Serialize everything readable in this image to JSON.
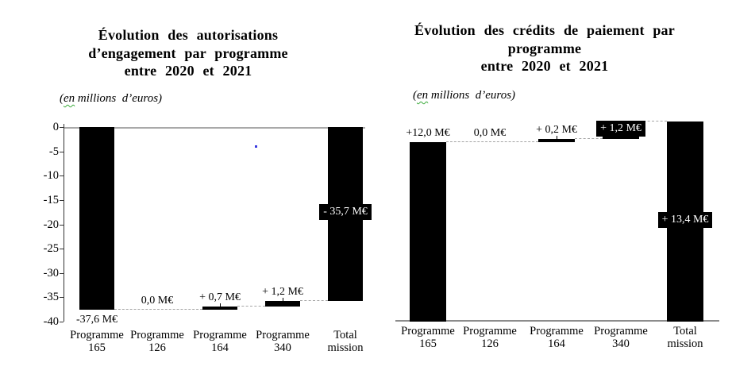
{
  "page": {
    "background": "#ffffff"
  },
  "artifacts": {
    "stray_dot_color": "#3a3ae0"
  },
  "chart_data": [
    {
      "type": "bar",
      "subtype": "waterfall",
      "title": "Évolution des autorisations d’engagement par programme entre 2020 et 2021",
      "title_lines": [
        "Évolution des autorisations",
        "d’engagement par programme",
        "entre 2020 et 2021"
      ],
      "subtitle": "(en millions  d’euros)",
      "subtitle_parts": {
        "open": "(",
        "wavy": "en",
        "rest": " millions  d’euros)"
      },
      "categories": [
        "Programme 165",
        "Programme 126",
        "Programme 164",
        "Programme 340",
        "Total mission"
      ],
      "category_lines": [
        [
          "Programme",
          "165"
        ],
        [
          "Programme",
          "126"
        ],
        [
          "Programme",
          "164"
        ],
        [
          "Programme",
          "340"
        ],
        [
          "Total",
          "mission"
        ]
      ],
      "values": [
        -37.6,
        0.0,
        0.7,
        1.2,
        -35.7
      ],
      "is_total": [
        false,
        false,
        false,
        false,
        true
      ],
      "value_labels": [
        "-37,6 M€",
        "0,0 M€",
        "+ 0,7 M€",
        "+ 1,2 M€",
        "- 35,7 M€"
      ],
      "label_styles": [
        "plain-below",
        "plain-above",
        "plain-above",
        "plain-above",
        "inverse-inside"
      ],
      "ylim": [
        -40,
        0
      ],
      "y_ticks": [
        0,
        -5,
        -10,
        -15,
        -20,
        -25,
        -30,
        -35,
        -40
      ],
      "grid": false,
      "legend": null,
      "bar_color": "#000000",
      "connector_color": "#a5a5a5",
      "zero_line_color": "#a9a9a9",
      "inverse_label_bg": "#000000",
      "inverse_label_fg": "#ffffff"
    },
    {
      "type": "bar",
      "subtype": "waterfall",
      "title": "Évolution des crédits de paiement par programme entre 2020 et 2021",
      "title_lines": [
        "Évolution des crédits de paiement par",
        "programme",
        "entre 2020 et 2021"
      ],
      "subtitle": "(en millions  d’euros)",
      "subtitle_parts": {
        "open": "(",
        "wavy": "en",
        "rest": " millions  d’euros)"
      },
      "categories": [
        "Programme 165",
        "Programme 126",
        "Programme 164",
        "Programme 340",
        "Total mission"
      ],
      "category_lines": [
        [
          "Programme",
          "165"
        ],
        [
          "Programme",
          "126"
        ],
        [
          "Programme",
          "164"
        ],
        [
          "Programme",
          "340"
        ],
        [
          "Total",
          "mission"
        ]
      ],
      "values": [
        12.0,
        0.0,
        0.2,
        1.2,
        13.4
      ],
      "is_total": [
        false,
        false,
        false,
        false,
        true
      ],
      "value_labels": [
        "+12,0 M€",
        "0,0 M€",
        "+ 0,2 M€",
        "+ 1,2 M€",
        "+ 13,4 M€"
      ],
      "label_styles": [
        "plain-above",
        "plain-above",
        "plain-above",
        "inverse-box",
        "inverse-inside"
      ],
      "ylim": [
        0,
        13.4
      ],
      "y_ticks": [],
      "grid": false,
      "legend": null,
      "bar_color": "#000000",
      "connector_color": "#a5a5a5",
      "zero_line_color": "#8c8c8c",
      "inverse_label_bg": "#000000",
      "inverse_label_fg": "#ffffff"
    }
  ]
}
